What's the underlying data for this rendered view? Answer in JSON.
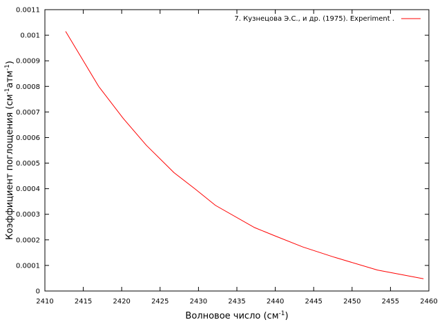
{
  "chart_data": {
    "type": "line",
    "xlabel": "Волновое число (см",
    "xlabel_sup": "-1",
    "xlabel_suffix": ")",
    "ylabel": "Коэффициент поглощения (см",
    "ylabel_sup1": "-1",
    "ylabel_mid": "атм",
    "ylabel_sup2": "-1",
    "ylabel_suffix": ")",
    "xlim": [
      2410,
      2460
    ],
    "ylim": [
      0,
      0.0011
    ],
    "xticks": [
      2410,
      2415,
      2420,
      2425,
      2430,
      2435,
      2440,
      2445,
      2450,
      2455,
      2460
    ],
    "yticks": [
      0,
      0.0001,
      0.0002,
      0.0003,
      0.0004,
      0.0005,
      0.0006,
      0.0007,
      0.0008,
      0.0009,
      0.001,
      0.0011
    ],
    "ytick_labels": [
      "0",
      "0.0001",
      "0.0002",
      "0.0003",
      "0.0004",
      "0.0005",
      "0.0006",
      "0.0007",
      "0.0008",
      "0.0009",
      "0.001",
      "0.0011"
    ],
    "grid": false,
    "legend_position": "top-right",
    "series": [
      {
        "name": "7. Кузнецова Э.С., и др. (1975). Experiment .",
        "color": "#ff0000",
        "x": [
          2412.7,
          2415.0,
          2417.0,
          2420.2,
          2423.2,
          2426.8,
          2429.6,
          2432.2,
          2437.3,
          2440.0,
          2443.6,
          2447.7,
          2453.3,
          2459.3
        ],
        "y": [
          0.001015,
          0.0009,
          0.0008,
          0.000675,
          0.00057,
          0.000463,
          0.000398,
          0.000335,
          0.000248,
          0.000215,
          0.000172,
          0.000132,
          8.2e-05,
          4.8e-05
        ]
      }
    ]
  }
}
